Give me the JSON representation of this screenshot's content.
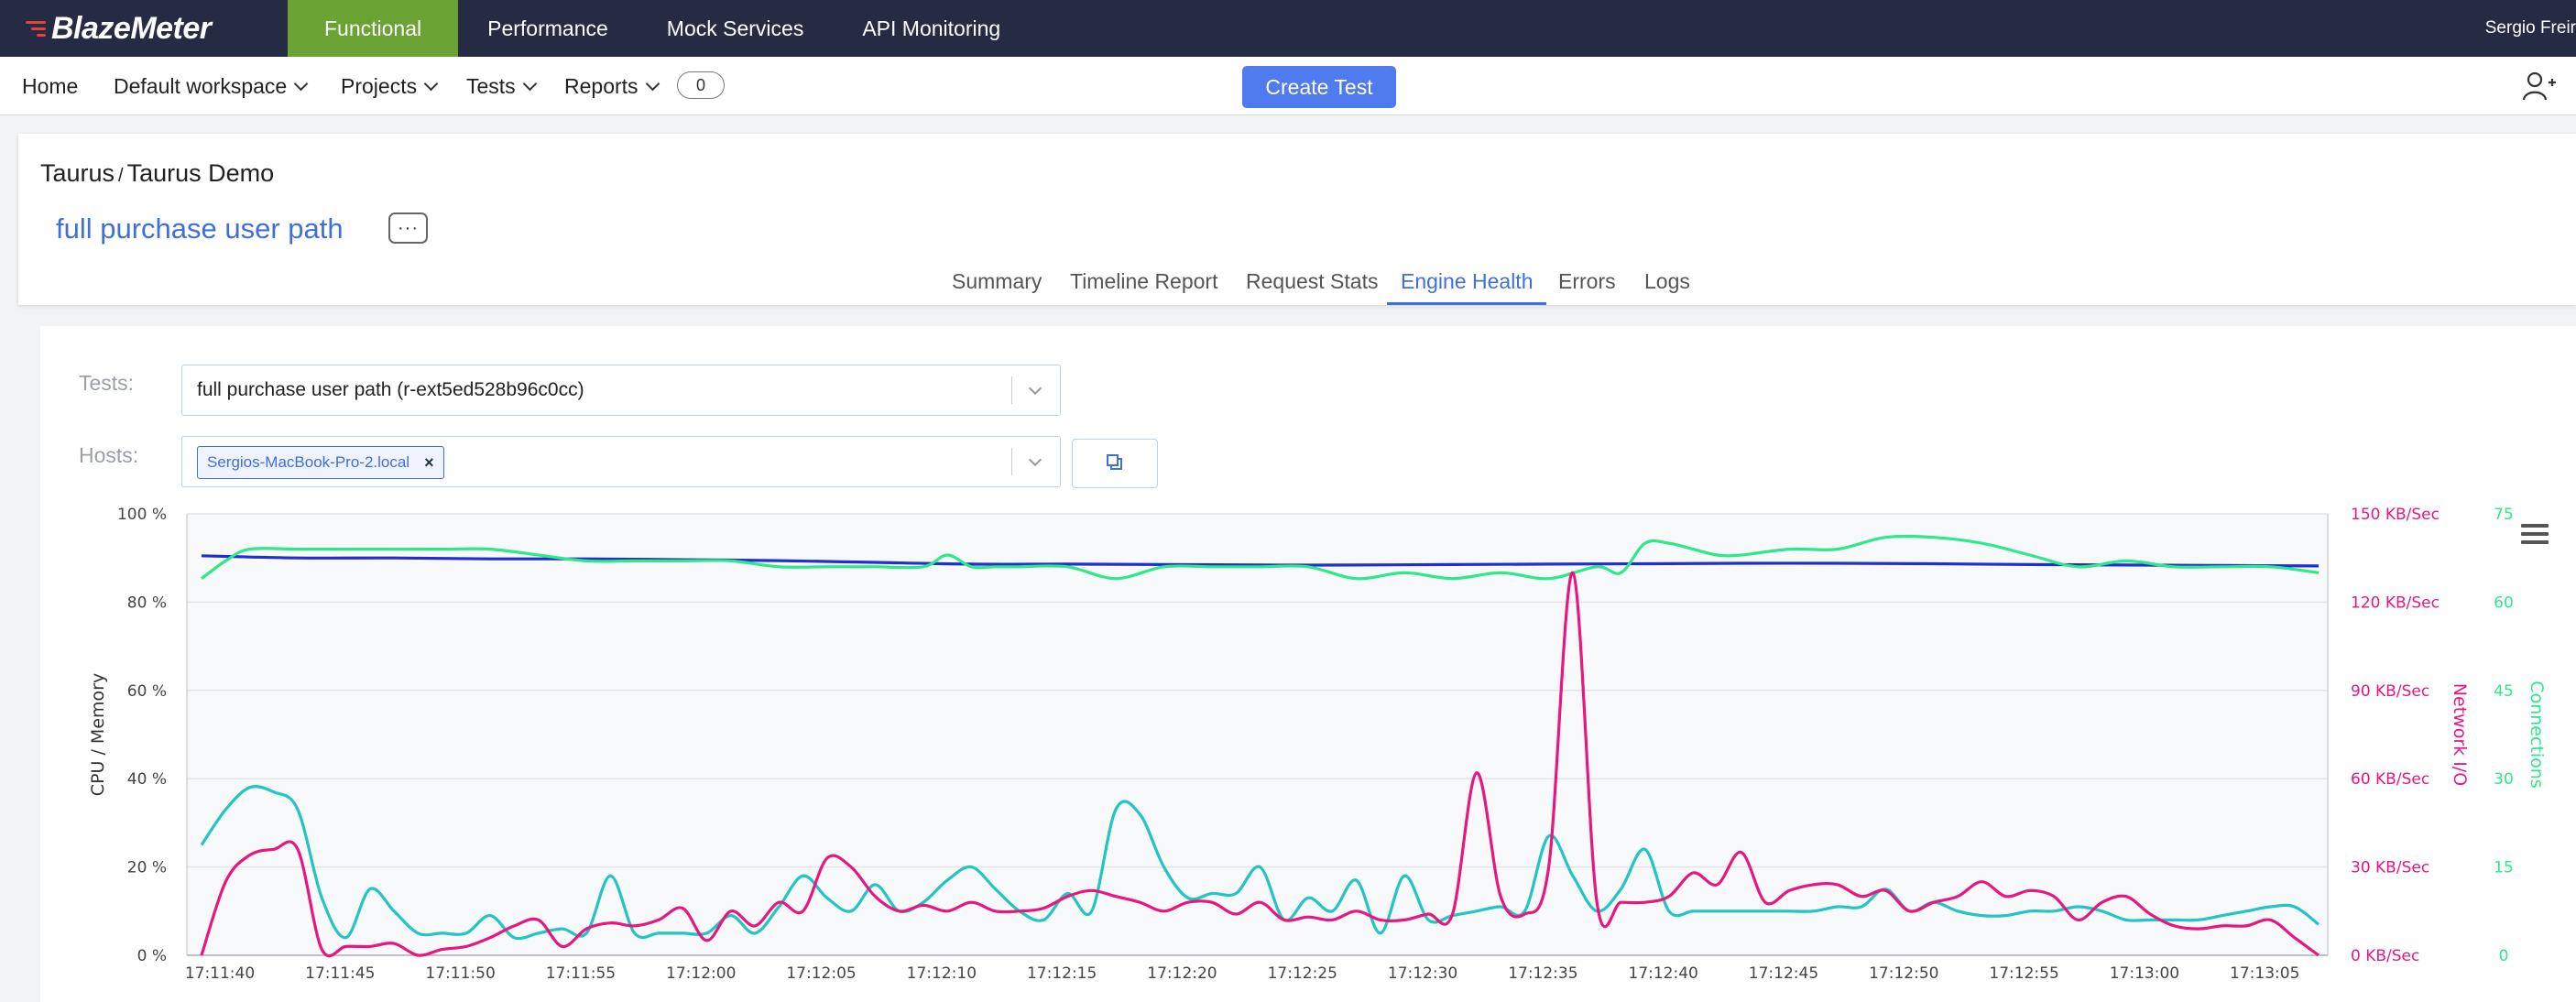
{
  "app": {
    "logo": "BlazeMeter",
    "nav": [
      "Functional",
      "Performance",
      "Mock Services",
      "API Monitoring"
    ],
    "user": "Sergio Freir"
  },
  "subnav": {
    "home": "Home",
    "workspace": "Default workspace",
    "projects": "Projects",
    "tests": "Tests",
    "reports": "Reports",
    "reports_count": "0",
    "create_test": "Create Test"
  },
  "report": {
    "breadcrumb_project": "Taurus",
    "breadcrumb_sep": "/",
    "breadcrumb_test": "Taurus Demo",
    "title": "full purchase user path",
    "more": "···",
    "tabs": [
      "Summary",
      "Timeline Report",
      "Request Stats",
      "Engine Health",
      "Errors",
      "Logs"
    ],
    "active_tab": "Engine Health"
  },
  "filters": {
    "tests_label": "Tests:",
    "tests_value": "full purchase user path (r-ext5ed528b96c0cc)",
    "hosts_label": "Hosts:",
    "hosts_tag": "Sergios-MacBook-Pro-2.local",
    "tag_remove": "×"
  },
  "colors": {
    "cpu": "#1f2fd0",
    "memory": "#22c4c4",
    "network": "#e8177f",
    "connections": "#2ee88a"
  },
  "chart_data": {
    "type": "line",
    "ylabel_left": "CPU / Memory",
    "ylabel_network": "Network I/O",
    "ylabel_connections": "Connections",
    "left_ticks": [
      "0 %",
      "20 %",
      "40 %",
      "60 %",
      "80 %",
      "100 %"
    ],
    "network_ticks": [
      "0 KB/Sec",
      "30 KB/Sec",
      "60 KB/Sec",
      "90 KB/Sec",
      "120 KB/Sec",
      "150 KB/Sec"
    ],
    "connection_ticks": [
      "0",
      "15",
      "30",
      "45",
      "60",
      "75"
    ],
    "x_ticks": [
      "17:11:40",
      "17:11:45",
      "17:11:50",
      "17:11:55",
      "17:12:00",
      "17:12:05",
      "17:12:10",
      "17:12:15",
      "17:12:20",
      "17:12:25",
      "17:12:30",
      "17:12:35",
      "17:12:40",
      "17:12:45",
      "17:12:50",
      "17:12:55",
      "17:13:00",
      "17:13:05"
    ],
    "ylim_left": [
      0,
      100
    ],
    "ylim_network": [
      0,
      150
    ],
    "ylim_connections": [
      0,
      75
    ],
    "x_seconds": [
      0,
      88
    ],
    "series": [
      {
        "key": "cpu",
        "axis": "left",
        "x": [
          0,
          4,
          8,
          12,
          16,
          20,
          24,
          28,
          32,
          36,
          40,
          44,
          48,
          52,
          56,
          60,
          64,
          68,
          72,
          76,
          80,
          84,
          88
        ],
        "values": [
          90.5,
          90,
          90,
          89.8,
          89.8,
          89.6,
          89.4,
          89,
          88.6,
          88.6,
          88.5,
          88.4,
          88.4,
          88.5,
          88.6,
          88.7,
          88.8,
          88.8,
          88.7,
          88.5,
          88.4,
          88.3,
          88.2
        ]
      },
      {
        "key": "connections",
        "axis": "connections",
        "x": [
          0,
          1,
          2,
          4,
          6,
          8,
          10,
          12,
          14,
          16,
          18,
          20,
          22,
          24,
          26,
          28,
          30,
          31,
          32,
          33,
          34,
          36,
          38,
          40,
          42,
          44,
          46,
          48,
          50,
          52,
          54,
          56,
          58,
          59,
          60,
          61,
          62,
          63,
          64,
          66,
          68,
          70,
          72,
          74,
          76,
          78,
          80,
          82,
          84,
          86,
          88
        ],
        "values": [
          64,
          67,
          69,
          69,
          69,
          69,
          69,
          69,
          68,
          67,
          67,
          67,
          67,
          66,
          66,
          66,
          66,
          68,
          66,
          66,
          66,
          66,
          64,
          66,
          66,
          66,
          66,
          64,
          65,
          64,
          65,
          64,
          66,
          65,
          70,
          70,
          69,
          68,
          68,
          69,
          69,
          71,
          71,
          70,
          68,
          66,
          67,
          66,
          66,
          66,
          65
        ]
      },
      {
        "key": "memory",
        "axis": "left",
        "x": [
          0,
          1,
          2,
          3,
          4,
          5,
          6,
          7,
          8,
          9,
          10,
          11,
          12,
          13,
          14,
          15,
          16,
          17,
          18,
          19,
          20,
          21,
          22,
          23,
          24,
          25,
          26,
          27,
          28,
          29,
          30,
          31,
          32,
          33,
          34,
          35,
          36,
          37,
          38,
          39,
          40,
          41,
          42,
          43,
          44,
          45,
          46,
          47,
          48,
          49,
          50,
          51,
          52,
          53,
          54,
          55,
          56,
          57,
          58,
          59,
          60,
          61,
          62,
          63,
          64,
          65,
          66,
          67,
          68,
          69,
          70,
          71,
          72,
          73,
          74,
          75,
          76,
          77,
          78,
          79,
          80,
          81,
          82,
          83,
          84,
          85,
          86,
          87,
          88
        ],
        "values": [
          25,
          33,
          38,
          37,
          33,
          13,
          4,
          15,
          10,
          5,
          5,
          5,
          9,
          4,
          5,
          6,
          5,
          18,
          5,
          5,
          5,
          5,
          9,
          5,
          11,
          18,
          13,
          10,
          16,
          10,
          12,
          17,
          20,
          15,
          10,
          8,
          14,
          10,
          33,
          32,
          20,
          13,
          14,
          14,
          20,
          8,
          13,
          10,
          17,
          5,
          18,
          8,
          9,
          10,
          11,
          10,
          27,
          18,
          10,
          15,
          24,
          10,
          10,
          10,
          10,
          10,
          10,
          10,
          11,
          11,
          15,
          10,
          12,
          10,
          9,
          9,
          10,
          10,
          11,
          10,
          8,
          8,
          8,
          8,
          9,
          10,
          11,
          11,
          7
        ]
      },
      {
        "key": "network",
        "axis": "network",
        "x": [
          0,
          1,
          2,
          3,
          4,
          5,
          6,
          7,
          8,
          9,
          10,
          11,
          12,
          13,
          14,
          15,
          16,
          17,
          18,
          19,
          20,
          21,
          22,
          23,
          24,
          25,
          26,
          27,
          28,
          29,
          30,
          31,
          32,
          33,
          34,
          35,
          36,
          37,
          38,
          39,
          40,
          41,
          42,
          43,
          44,
          45,
          46,
          47,
          48,
          49,
          50,
          51,
          52,
          53,
          54,
          55,
          56,
          57,
          58,
          59,
          60,
          61,
          62,
          63,
          64,
          65,
          66,
          67,
          68,
          69,
          70,
          71,
          72,
          73,
          74,
          75,
          76,
          77,
          78,
          79,
          80,
          81,
          82,
          83,
          84,
          85,
          86,
          87,
          88
        ],
        "values": [
          0,
          25,
          34,
          36,
          36,
          2,
          3,
          3,
          4,
          0,
          2,
          3,
          6,
          10,
          12,
          3,
          9,
          11,
          10,
          12,
          16,
          5,
          15,
          10,
          18,
          15,
          33,
          30,
          20,
          15,
          17,
          15,
          18,
          15,
          15,
          16,
          20,
          22,
          20,
          18,
          15,
          18,
          18,
          14,
          18,
          12,
          13,
          12,
          15,
          12,
          12,
          14,
          14,
          62,
          20,
          14,
          30,
          130,
          18,
          18,
          18,
          20,
          28,
          24,
          35,
          18,
          22,
          24,
          24,
          20,
          22,
          15,
          18,
          20,
          25,
          20,
          22,
          20,
          12,
          18,
          20,
          14,
          10,
          9,
          10,
          10,
          12,
          6,
          0
        ]
      }
    ]
  }
}
